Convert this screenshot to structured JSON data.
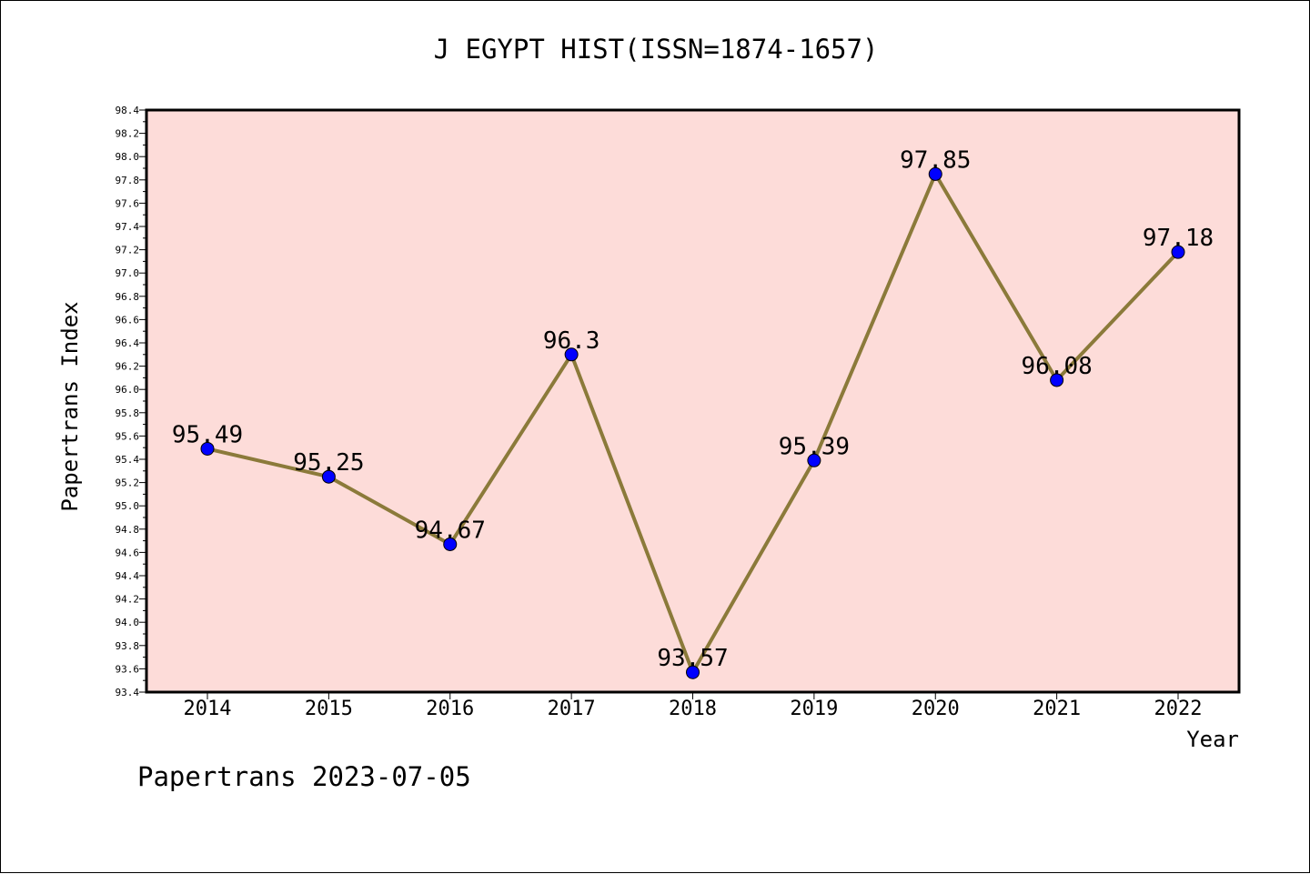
{
  "chart_data": {
    "type": "line",
    "title": "J EGYPT HIST(ISSN=1874-1657)",
    "xlabel": "Year",
    "ylabel": "Papertrans Index",
    "categories": [
      "2014",
      "2015",
      "2016",
      "2017",
      "2018",
      "2019",
      "2020",
      "2021",
      "2022"
    ],
    "series": [
      {
        "values": [
          95.49,
          95.25,
          94.67,
          96.3,
          93.57,
          95.39,
          97.85,
          96.08,
          97.18
        ],
        "data_labels": [
          "95.49",
          "95.25",
          "94.67",
          "96.3",
          "93.57",
          "95.39",
          "97.85",
          "96.08",
          "97.18"
        ]
      }
    ],
    "ylim": [
      93.4,
      98.4
    ],
    "yticks": [
      "93.4",
      "93.6",
      "93.8",
      "94.0",
      "94.2",
      "94.4",
      "94.6",
      "94.8",
      "95.0",
      "95.2",
      "95.4",
      "95.6",
      "95.8",
      "96.0",
      "96.2",
      "96.4",
      "96.6",
      "96.8",
      "97.0",
      "97.2",
      "97.4",
      "97.6",
      "97.8",
      "98.0",
      "98.2",
      "98.4"
    ],
    "grid": false,
    "legend": "none",
    "colors": {
      "plot_background": "#fddcd9",
      "line": "#8b7a3a",
      "marker": "#0000ff"
    }
  },
  "footer": {
    "text": "Papertrans 2023-07-05"
  }
}
